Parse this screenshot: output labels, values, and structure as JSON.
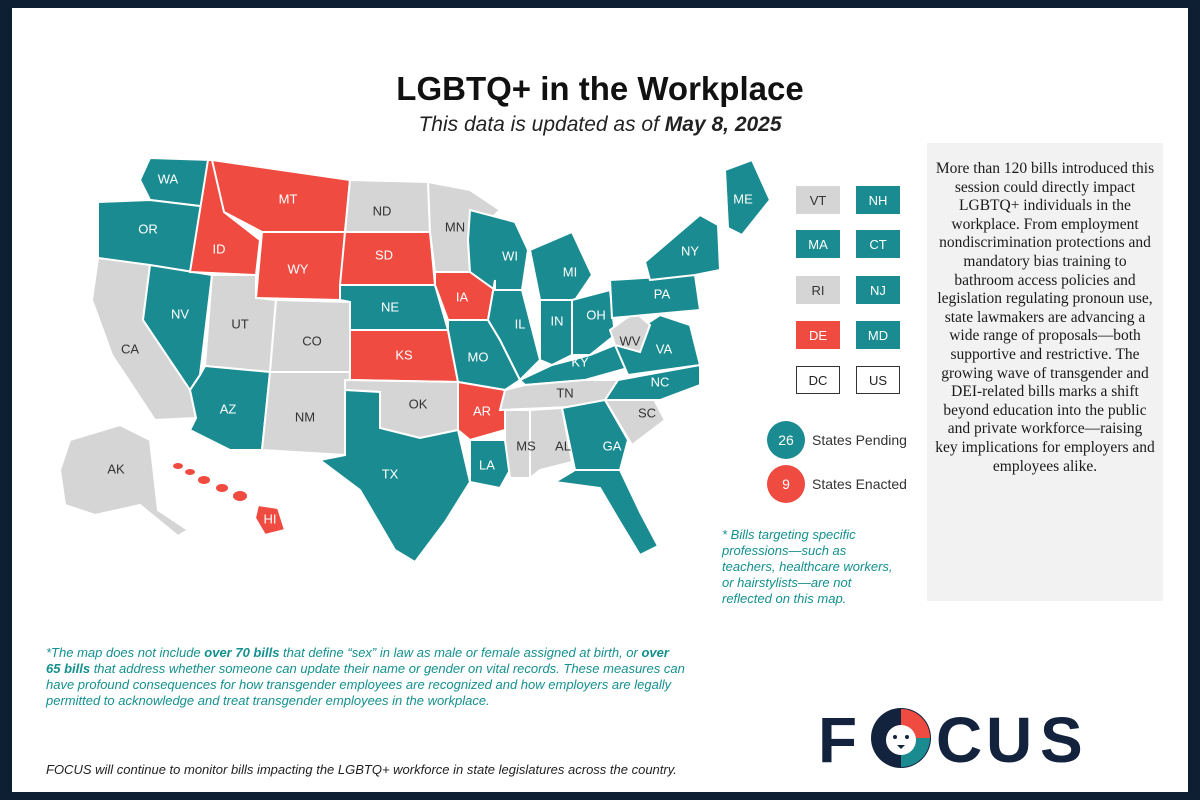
{
  "title": "LGBTQ+ in the Workplace",
  "subtitle_prefix": "This data is updated as of ",
  "subtitle_date": "May 8, 2025",
  "colors": {
    "pending": "#1a8c91",
    "enacted": "#ef4b41",
    "none": "#d5d5d5"
  },
  "states": {
    "WA": "pending",
    "OR": "pending",
    "CA": "none",
    "NV": "pending",
    "ID": "enacted",
    "MT": "enacted",
    "WY": "enacted",
    "UT": "none",
    "CO": "none",
    "AZ": "pending",
    "NM": "none",
    "ND": "none",
    "SD": "enacted",
    "NE": "pending",
    "KS": "enacted",
    "OK": "none",
    "TX": "pending",
    "MN": "none",
    "IA": "enacted",
    "MO": "pending",
    "AR": "enacted",
    "LA": "pending",
    "WI": "pending",
    "IL": "pending",
    "MI": "pending",
    "IN": "pending",
    "OH": "pending",
    "KY": "pending",
    "TN": "none",
    "MS": "none",
    "AL": "none",
    "GA": "pending",
    "FL": "pending",
    "SC": "none",
    "NC": "pending",
    "VA": "pending",
    "WV": "none",
    "PA": "pending",
    "NY": "pending",
    "ME": "pending",
    "AK": "none",
    "HI": "enacted"
  },
  "small_states": [
    {
      "code": "VT",
      "status": "none"
    },
    {
      "code": "NH",
      "status": "pending"
    },
    {
      "code": "MA",
      "status": "pending"
    },
    {
      "code": "CT",
      "status": "pending"
    },
    {
      "code": "RI",
      "status": "none"
    },
    {
      "code": "NJ",
      "status": "pending"
    },
    {
      "code": "DE",
      "status": "enacted"
    },
    {
      "code": "MD",
      "status": "pending"
    },
    {
      "code": "DC",
      "status": "outline"
    },
    {
      "code": "US",
      "status": "outline"
    }
  ],
  "legend": [
    {
      "count": "26",
      "label": "States Pending",
      "status": "pending"
    },
    {
      "count": "9",
      "label": "States Enacted",
      "status": "enacted"
    }
  ],
  "sidebar_text": "More than 120 bills introduced this session could directly impact LGBTQ+ individuals in the workplace. From employment nondiscrimination protections and mandatory bias training to bathroom access policies and legislation regulating pronoun use, state lawmakers are advancing a wide range of proposals—both supportive and restrictive. The growing wave of transgender and DEI-related bills marks a shift beyond education into the public and private workforce—raising key implications for employers and employees alike.",
  "note_professions": "* Bills targeting specific professions—such as teachers, healthcare workers, or hairstylists—are not reflected on this map.",
  "footnote": {
    "part1": "*The map does not include ",
    "bold1": "over 70 bills",
    "part2": " that define “sex” in law as male or female assigned at birth, or ",
    "bold2": "over 65 bills",
    "part3": " that address whether someone can update their name or gender on vital records. These measures can have profound consequences for how transgender employees are recognized and how employers are legally permitted to acknowledge and treat transgender employees in the workplace."
  },
  "monitor_text": "FOCUS will continue to monitor bills impacting the LGBTQ+ workforce in state legislatures across the country.",
  "logo": {
    "letters": [
      "F",
      "C",
      "U",
      "S"
    ],
    "mascot": "lion-icon"
  }
}
